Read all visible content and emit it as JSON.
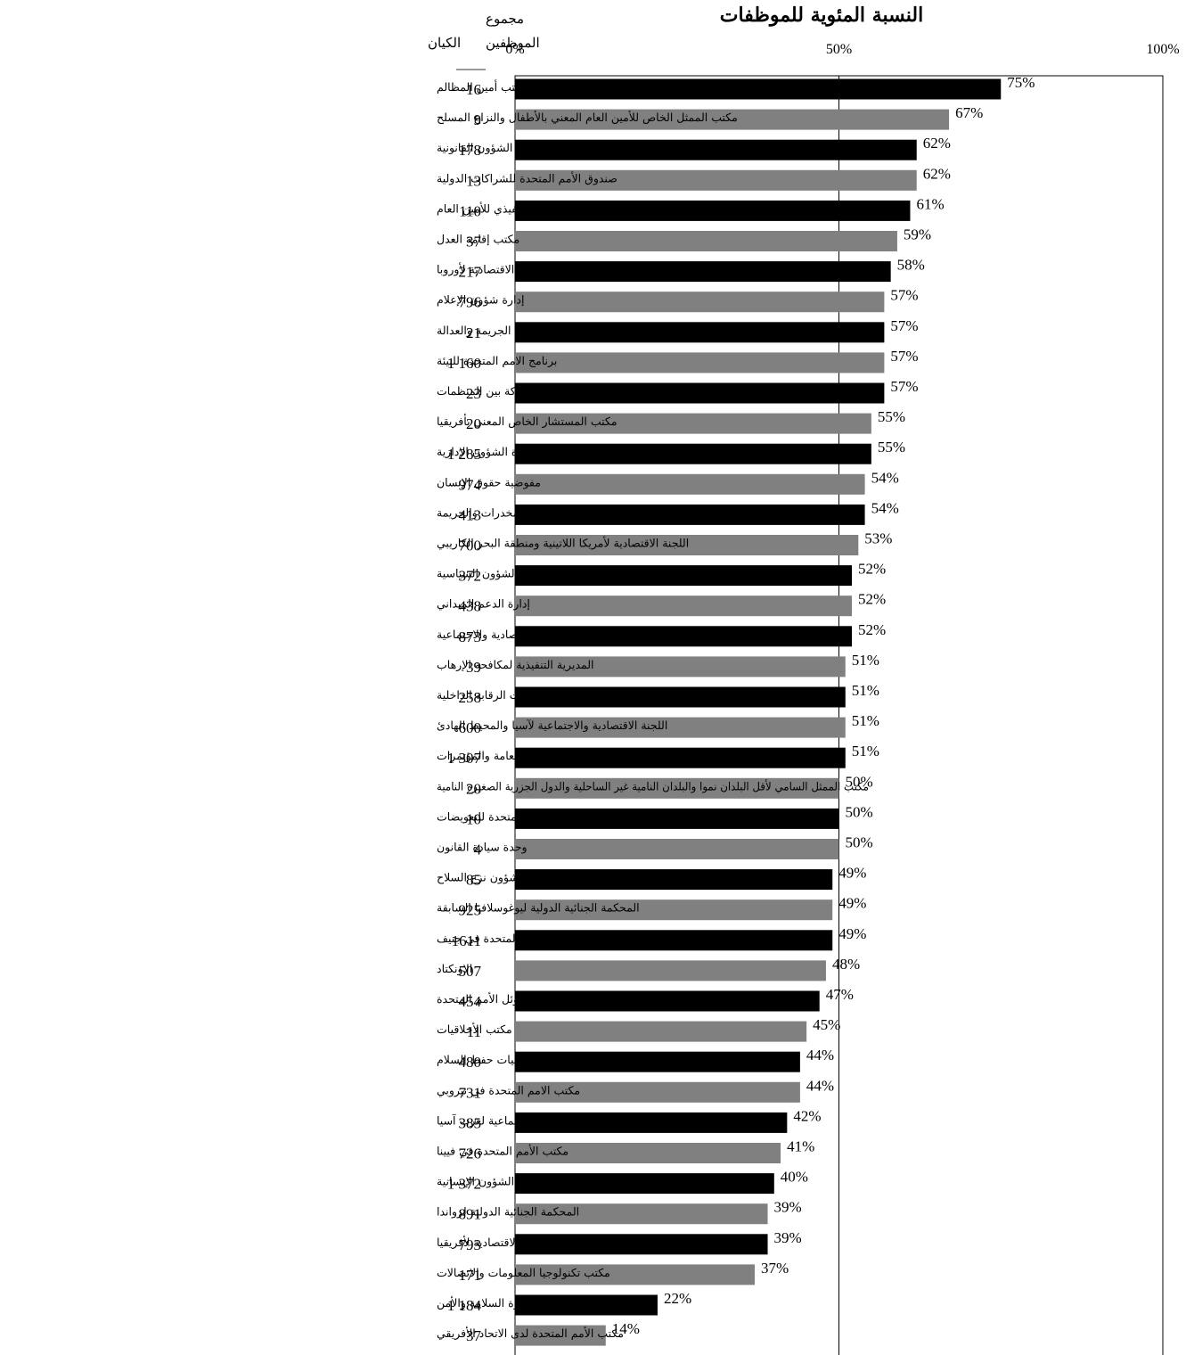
{
  "chart_data": {
    "type": "bar",
    "orientation": "horizontal",
    "title": "النسبة المئوية للموظفات",
    "column_headers": {
      "total_staff": "مجموع الموظفين",
      "entity": "الكيان"
    },
    "x_ticks": [
      "0%",
      "50%",
      "100%"
    ],
    "xlim": [
      0,
      100
    ],
    "value_suffix": "%",
    "colors": {
      "odd_rows": "#000000",
      "even_rows": "#808080"
    },
    "grid": "vertical line at 50%",
    "rows": [
      {
        "entity": "مكتب أمين المظالم",
        "total": "16",
        "value": 75
      },
      {
        "entity": "مكتب الممثل الخاص للأمين العام المعني بالأطفال والنزاع المسلح",
        "total": "9",
        "value": 67
      },
      {
        "entity": "مكتب الشؤون القانونية",
        "total": "178",
        "value": 62
      },
      {
        "entity": "صندوق الأمم المتحدة للشراكات الدولية",
        "total": "13",
        "value": 62
      },
      {
        "entity": "المكتب التنفيذي للأمين العام",
        "total": "110",
        "value": 61
      },
      {
        "entity": "مكتب إقامة العدل",
        "total": "37",
        "value": 59
      },
      {
        "entity": "اللجنة الاقتصادية لأوروبا",
        "total": "217",
        "value": 58
      },
      {
        "entity": "إدارة شؤون الإعلام",
        "total": "796",
        "value": 57
      },
      {
        "entity": "معهد الأمم المتحدة الأقاليمي لبحوث الجريمة والعدالة",
        "total": "21",
        "value": 57
      },
      {
        "entity": "برنامج الامم المتحدة للبيئة",
        "total": "1 160",
        "value": 57
      },
      {
        "entity": "الهيئات المشتركة بين المنظمات",
        "total": "23",
        "value": 57
      },
      {
        "entity": "مكتب المستشار الخاص المعني بأفريقيا",
        "total": "20",
        "value": 55
      },
      {
        "entity": "إدارة الشؤون الإدارية",
        "total": "1 285",
        "value": 55
      },
      {
        "entity": "مفوضية حقوق الإنسان",
        "total": "974",
        "value": 54
      },
      {
        "entity": "مكتب الامم المتحدة المعني بالمخدرات والجريمة",
        "total": "413",
        "value": 54
      },
      {
        "entity": "اللجنة الاقتصادية لأمريكا اللاتينية ومنطقة البحر الكاريبي",
        "total": "700",
        "value": 53
      },
      {
        "entity": "إدارة الشؤون السياسية",
        "total": "372",
        "value": 52
      },
      {
        "entity": "إدارة الدعم الميداني",
        "total": "438",
        "value": 52
      },
      {
        "entity": "إدارة الشؤون الاقتصادية والاجتماعية",
        "total": "873",
        "value": 52
      },
      {
        "entity": "المديرية التنفيذية لمكافحة الإرهاب",
        "total": "39",
        "value": 51
      },
      {
        "entity": "مكتب خدمات الرقابة الداخلية",
        "total": "258",
        "value": 51
      },
      {
        "entity": "اللجنة الاقتصادية والاجتماعية لآسيا والمحيط الهادئ",
        "total": "600",
        "value": 51
      },
      {
        "entity": "إدارة شؤون الجمعية العامة والمؤتمرات",
        "total": "1 307",
        "value": 51
      },
      {
        "entity": "مكتب الممثل السامي لأقل البلدان نموا والبلدان النامية غير الساحلية والدول الجزرية الصغيرة النامية",
        "total": "20",
        "value": 50
      },
      {
        "entity": "لجنة الأمم المتحدة للتعويضات",
        "total": "10",
        "value": 50
      },
      {
        "entity": "وحدة سيادة القانون",
        "total": "4",
        "value": 50
      },
      {
        "entity": "مكتب شؤون نزع السلاح",
        "total": "85",
        "value": 49
      },
      {
        "entity": "المحكمة الجنائية الدولية ليوغوسلافيا السابقة",
        "total": "925",
        "value": 49
      },
      {
        "entity": "مكتب الأمم المتحدة في جنيف",
        "total": "1611",
        "value": 49
      },
      {
        "entity": "الاونكتاد",
        "total": "507",
        "value": 48
      },
      {
        "entity": "موئل الأمم المتحدة",
        "total": "454",
        "value": 47
      },
      {
        "entity": "مكتب الأخلاقيات",
        "total": "11",
        "value": 45
      },
      {
        "entity": "إدارة عمليات حفظ السلام",
        "total": "480",
        "value": 44
      },
      {
        "entity": "مكتب الامم المتحدة في نيروبي",
        "total": "731",
        "value": 44
      },
      {
        "entity": "اللجنة الاقتصادية والاجتماعية لغرب آسيا",
        "total": "385",
        "value": 42
      },
      {
        "entity": "مكتب الأمم المتحدة في فيينا",
        "total": "726",
        "value": 41
      },
      {
        "entity": "مكتب تنسيق الشؤون الإنسانية",
        "total": "1 372",
        "value": 40
      },
      {
        "entity": "المحكمة الجنائية الدولية لرواندا",
        "total": "891",
        "value": 39
      },
      {
        "entity": "اللجنة الاقتصادية لأفريقيا",
        "total": "793",
        "value": 39
      },
      {
        "entity": "مكتب تكنولوجيا المعلومات والاتصالات",
        "total": "171",
        "value": 37
      },
      {
        "entity": "إدارة السلامة والأمن",
        "total": "1 184",
        "value": 22
      },
      {
        "entity": "مكتب الأمم المتحدة لدى الاتحاد الأفريقي",
        "total": "37",
        "value": 14
      }
    ]
  }
}
